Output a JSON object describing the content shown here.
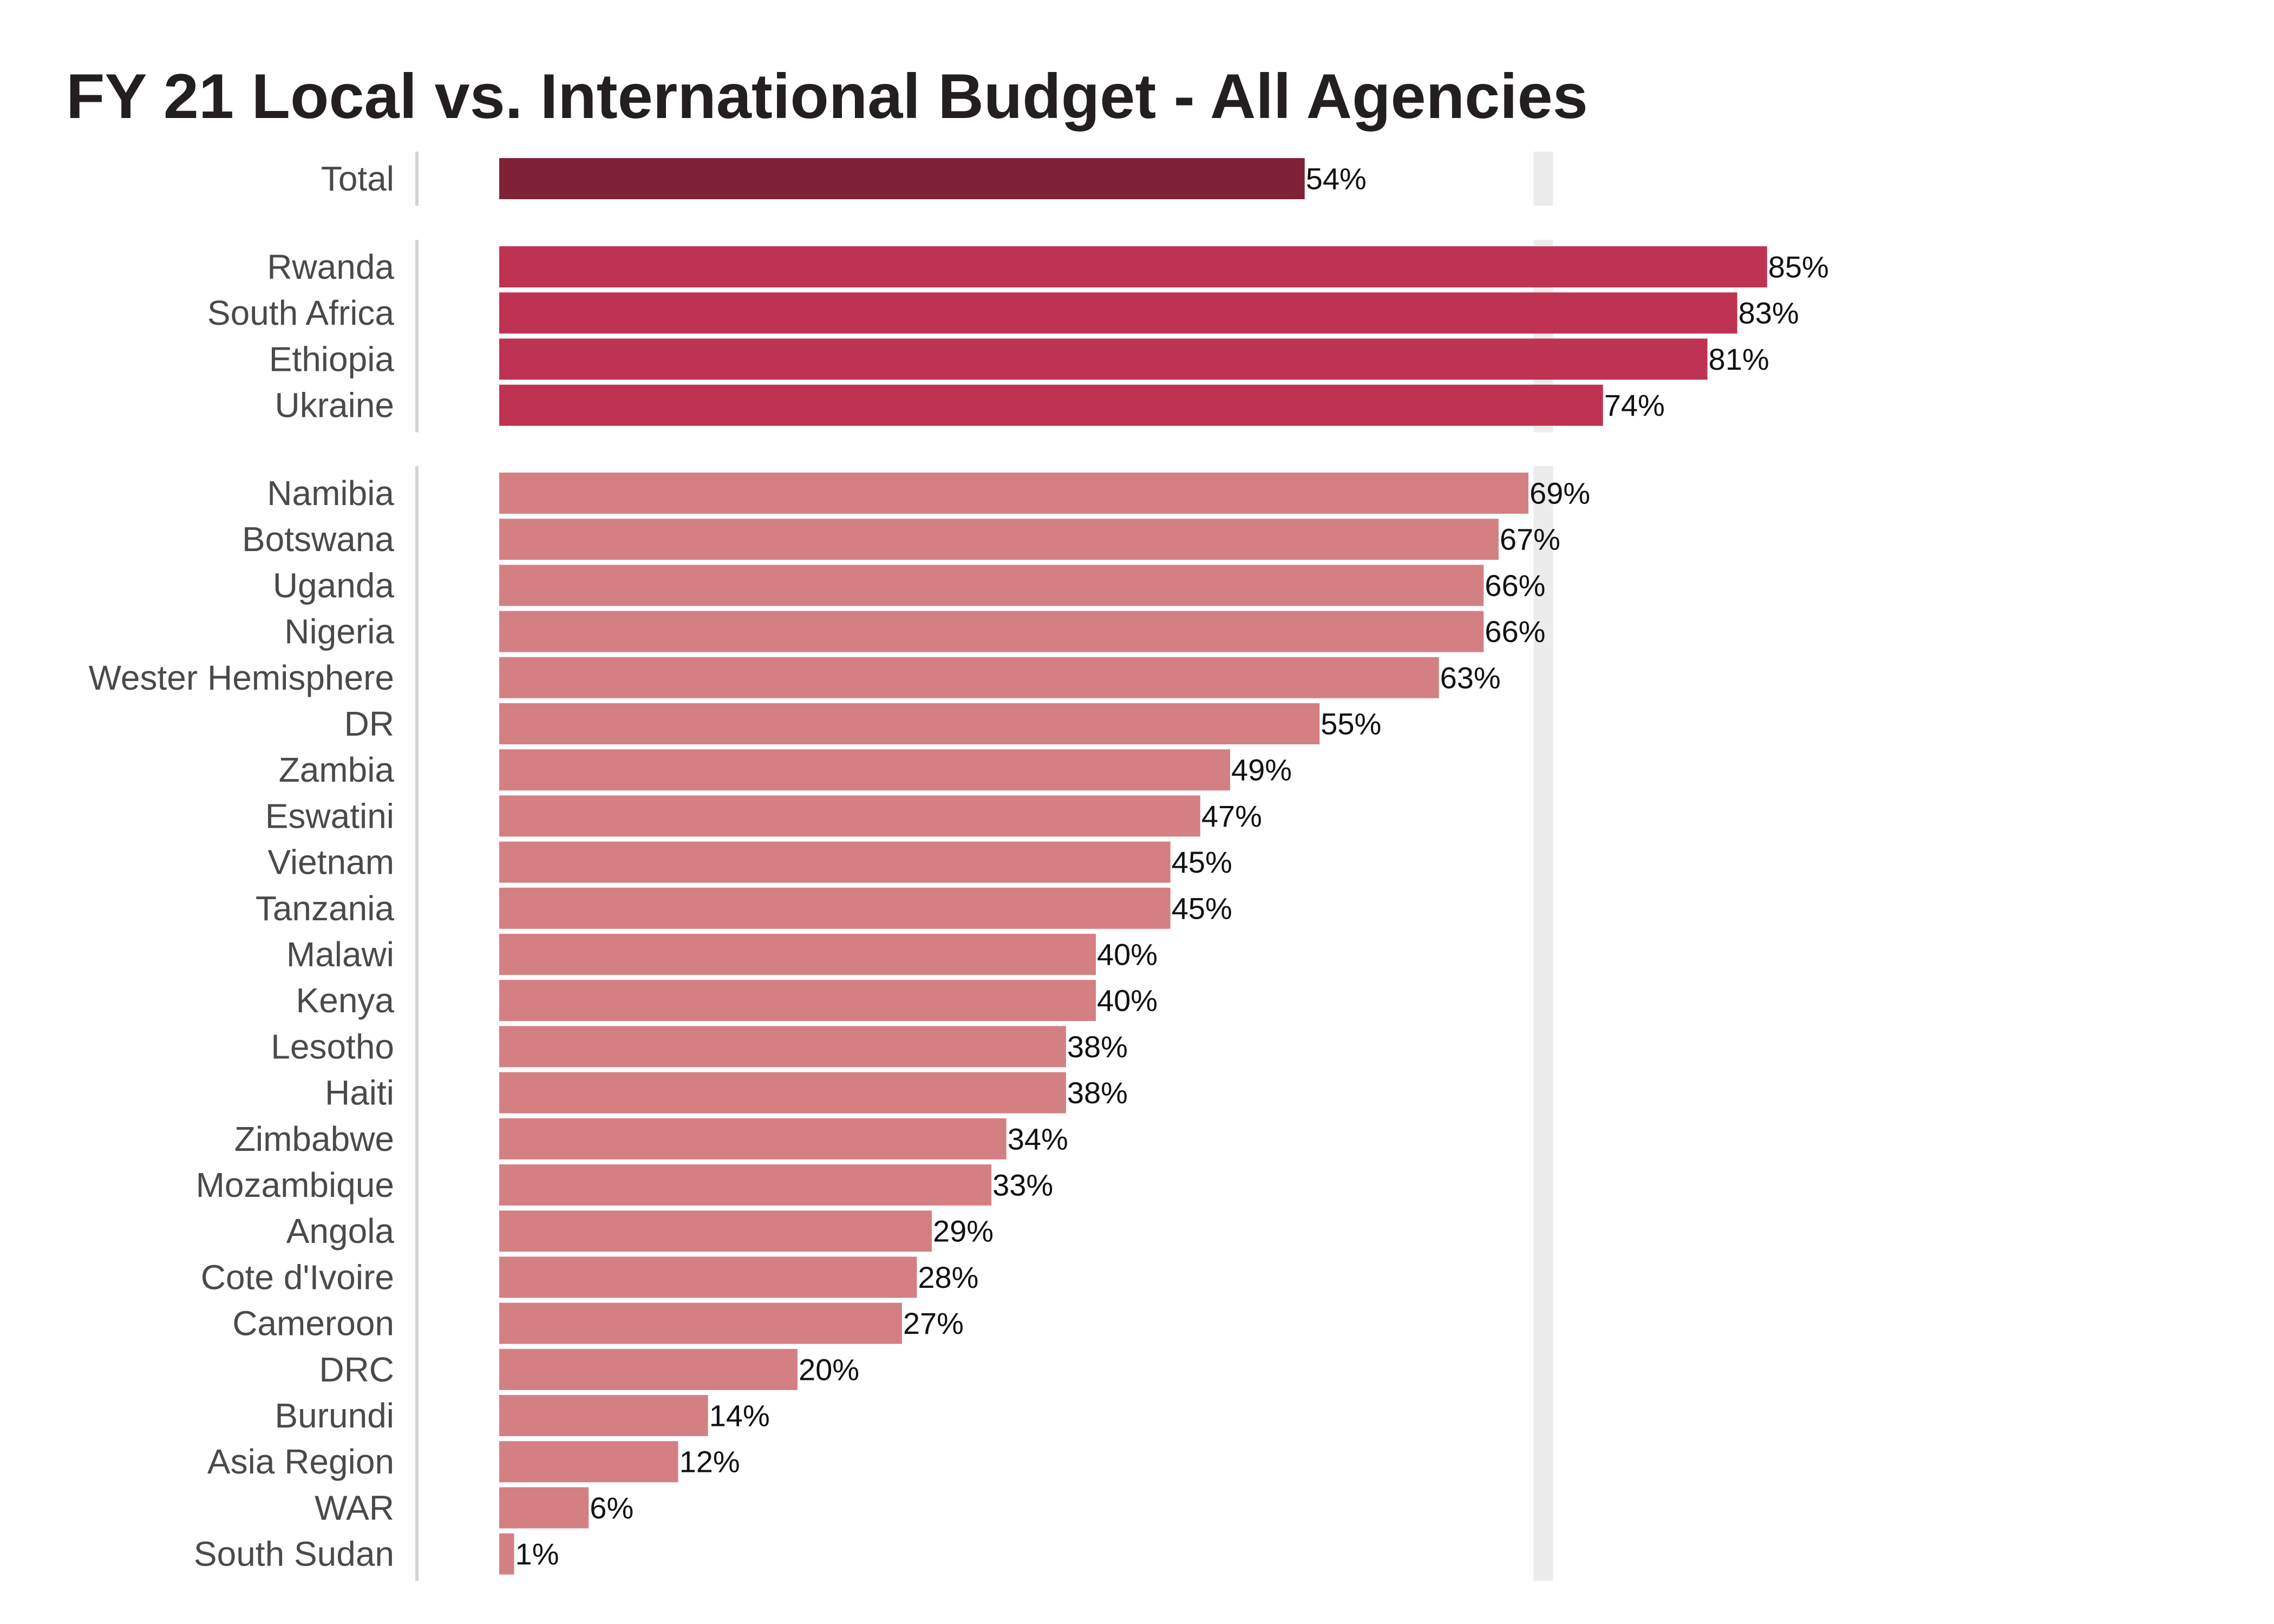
{
  "chart_data": {
    "type": "bar",
    "orientation": "horizontal",
    "title": "FY 21 Local vs. International Budget - All Agencies",
    "xlabel": "",
    "ylabel": "",
    "xlim": [
      0,
      100
    ],
    "grid": false,
    "reference_line": 70,
    "value_format": "percent",
    "colors": {
      "total": "#7f2238",
      "top_group": "#be3351",
      "other_group": "#d48083",
      "reference_band": "#ececec",
      "axis_line": "#d4d4d4"
    },
    "groups": [
      {
        "name": "total",
        "categories": [
          "Total"
        ],
        "values": [
          54
        ]
      },
      {
        "name": "top_group",
        "categories": [
          "Rwanda",
          "South Africa",
          "Ethiopia",
          "Ukraine"
        ],
        "values": [
          85,
          83,
          81,
          74
        ]
      },
      {
        "name": "other_group",
        "categories": [
          "Namibia",
          "Botswana",
          "Uganda",
          "Nigeria",
          "Wester Hemisphere",
          "DR",
          "Zambia",
          "Eswatini",
          "Vietnam",
          "Tanzania",
          "Malawi",
          "Kenya",
          "Lesotho",
          "Haiti",
          "Zimbabwe",
          "Mozambique",
          "Angola",
          "Cote d'Ivoire",
          "Cameroon",
          "DRC",
          "Burundi",
          "Asia Region",
          "WAR",
          "South Sudan"
        ],
        "values": [
          69,
          67,
          66,
          66,
          63,
          55,
          49,
          47,
          45,
          45,
          40,
          40,
          38,
          38,
          34,
          33,
          29,
          28,
          27,
          20,
          14,
          12,
          6,
          1
        ]
      }
    ]
  }
}
